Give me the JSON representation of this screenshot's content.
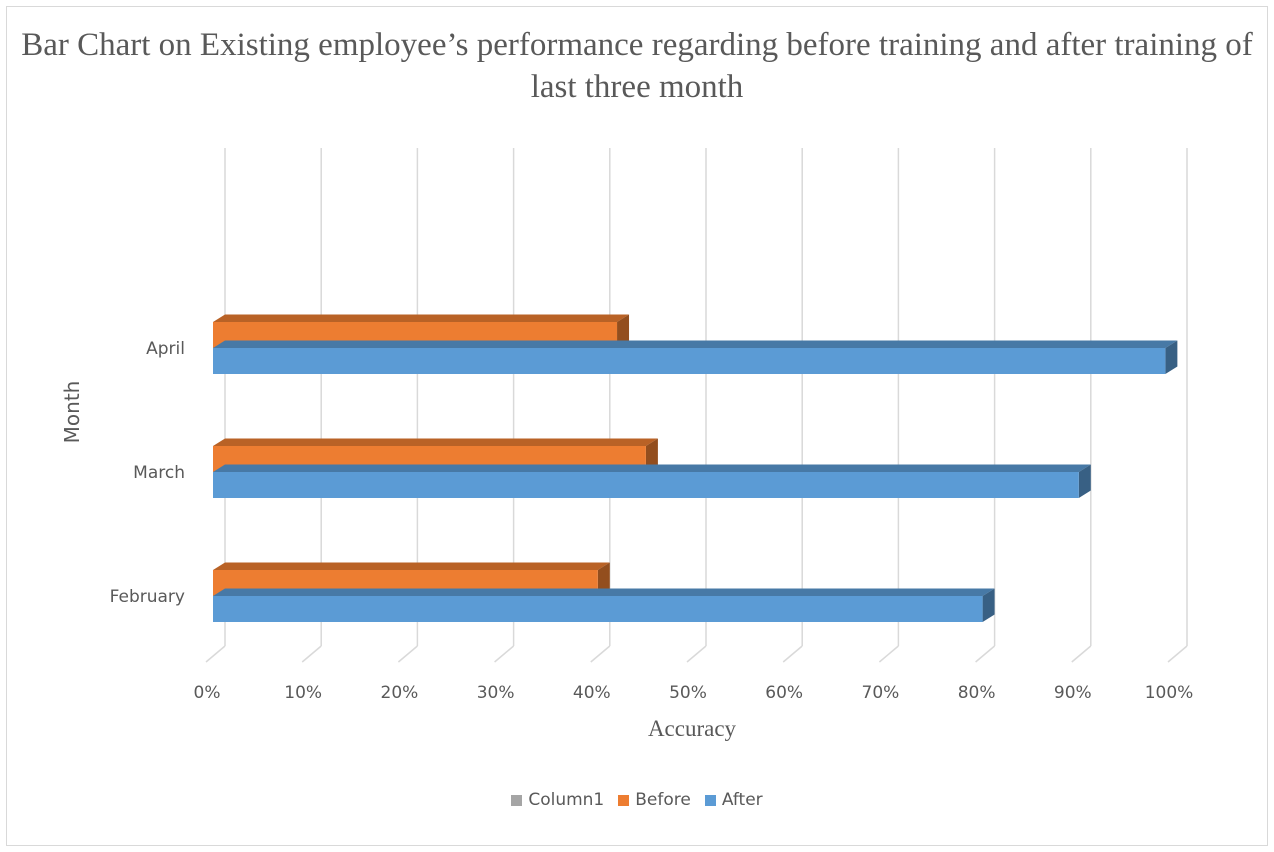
{
  "chart_data": {
    "type": "bar",
    "orientation": "horizontal",
    "title": "Bar Chart on Existing employee’s performance regarding before training and after training of last three month",
    "xlabel": "Accuracy",
    "ylabel": "Month",
    "categories": [
      "February",
      "March",
      "April"
    ],
    "series": [
      {
        "name": "Column1",
        "values": [
          0,
          0,
          0
        ],
        "color": "#a5a5a5"
      },
      {
        "name": "Before",
        "values": [
          0.4,
          0.45,
          0.42
        ],
        "color": "#ed7d31"
      },
      {
        "name": "After",
        "values": [
          0.8,
          0.9,
          0.99
        ],
        "color": "#5b9bd5"
      }
    ],
    "xlim": [
      0,
      1
    ],
    "x_ticks": [
      "0%",
      "10%",
      "20%",
      "30%",
      "40%",
      "50%",
      "60%",
      "70%",
      "80%",
      "90%",
      "100%"
    ],
    "grid": true,
    "legend_position": "bottom"
  }
}
